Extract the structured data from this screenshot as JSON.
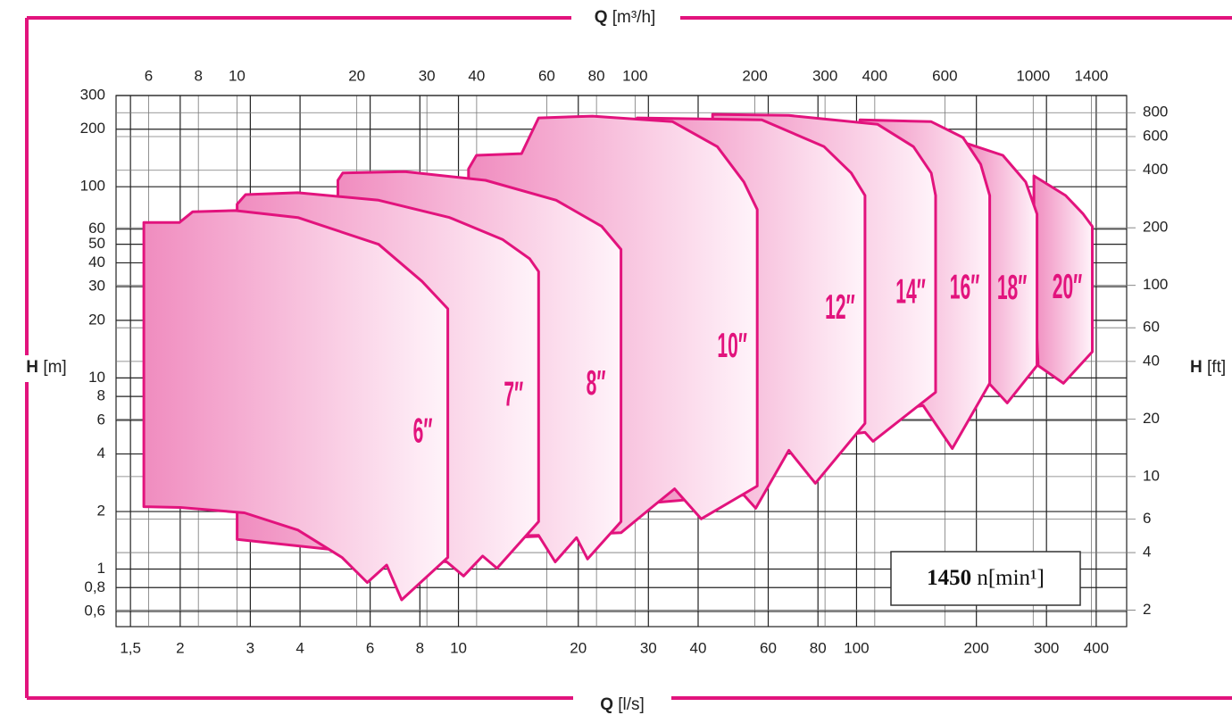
{
  "chart_data": {
    "type": "area",
    "xlabel": {
      "symbol": "Q",
      "unit": "[l/s]"
    },
    "x2label": {
      "symbol": "Q",
      "unit": "[m³/h]"
    },
    "ylabel": {
      "symbol": "H",
      "unit": "[m]"
    },
    "y2label": {
      "symbol": "H",
      "unit": "[ft]"
    },
    "log_x": true,
    "log_y": true,
    "grid": true,
    "color": "#e2137d",
    "fill": "#f08cbf",
    "xlim": [
      1.38,
      477
    ],
    "xticks": [
      {
        "value": 1.5,
        "label": "1,5"
      },
      2,
      3,
      4,
      6,
      8,
      10,
      20,
      30,
      40,
      60,
      80,
      100,
      200,
      300,
      400
    ],
    "x2lim": [
      4.97,
      1717
    ],
    "x2ticks": [
      6,
      8,
      10,
      20,
      30,
      40,
      60,
      80,
      100,
      200,
      300,
      400,
      600,
      1000,
      1400
    ],
    "ylim": [
      0.5,
      300
    ],
    "yticks": [
      300,
      200,
      100,
      60,
      50,
      40,
      20,
      30,
      10,
      8,
      6,
      4,
      2,
      1,
      {
        "value": 0.8,
        "label": "0,8"
      },
      {
        "value": 0.6,
        "label": "0,6"
      }
    ],
    "y2lim": [
      1.64,
      984
    ],
    "y2ticks": [
      800,
      600,
      400,
      200,
      100,
      60,
      40,
      20,
      10,
      6,
      4,
      2
    ],
    "series": [
      {
        "name": "6″",
        "x": [
          1.62,
          1.99,
          2.15,
          2.75,
          3.95,
          6.3,
          8.1,
          9.4,
          9.4,
          7.2,
          6.6,
          5.9,
          5.1,
          3.95,
          2.9,
          2.0,
          1.62
        ],
        "values": [
          65,
          65,
          74,
          75,
          69,
          50,
          32,
          23,
          1.15,
          0.69,
          1.05,
          0.85,
          1.15,
          1.6,
          1.97,
          2.1,
          2.12
        ]
      },
      {
        "name": "7″",
        "x": [
          2.78,
          2.92,
          3.95,
          6.3,
          9.5,
          12.9,
          15.1,
          15.9,
          15.9,
          12.5,
          11.5,
          10.3,
          9.35,
          2.78
        ],
        "values": [
          81,
          91,
          93,
          85,
          69,
          53,
          42,
          36,
          1.77,
          1.01,
          1.17,
          0.92,
          1.09,
          1.43
        ]
      },
      {
        "name": "8″",
        "x": [
          4.98,
          5.12,
          7.33,
          11.7,
          17.6,
          22.9,
          25.6,
          25.6,
          21.1,
          19.8,
          17.5,
          15.9,
          4.98
        ],
        "values": [
          108,
          118,
          120,
          108,
          85,
          62,
          47,
          1.77,
          1.13,
          1.46,
          1.09,
          1.5,
          1.43
        ]
      },
      {
        "name": "10″",
        "x": [
          10.6,
          11.1,
          14.4,
          15.9,
          21.7,
          34.5,
          44.7,
          52.1,
          56.3,
          56.3,
          40.7,
          34.9,
          30.4,
          25.6,
          10.6
        ],
        "values": [
          124,
          146,
          149,
          229,
          234,
          219,
          162,
          106,
          76,
          2.72,
          1.83,
          2.63,
          2.08,
          1.55,
          1.43
        ]
      },
      {
        "name": "12″",
        "x": [
          28.1,
          57.8,
          82.9,
          97,
          105,
          105,
          78.8,
          67.6,
          55.8,
          52.1,
          28.1
        ],
        "values": [
          229,
          224,
          162,
          118,
          90,
          5.78,
          2.81,
          4.18,
          2.08,
          2.44,
          2.19
        ]
      },
      {
        "name": "14″",
        "x": [
          43.5,
          67.6,
          113,
          139,
          154,
          158,
          158,
          110,
          105,
          43.5
        ],
        "values": [
          239,
          236,
          212,
          162,
          118,
          90,
          8.42,
          4.66,
          5.19,
          4.18
        ]
      },
      {
        "name": "16″",
        "x": [
          102,
          154,
          185,
          205,
          216,
          216,
          174,
          147,
          102
        ],
        "values": [
          224,
          219,
          181,
          131,
          90,
          9.37,
          4.27,
          7.16,
          6.43
        ]
      },
      {
        "name": "18″",
        "x": [
          190,
          233,
          266,
          284,
          284,
          239,
          210,
          190
        ],
        "values": [
          168,
          146,
          106,
          72,
          11.6,
          7.4,
          9.89,
          8.89
        ]
      },
      {
        "name": "20″",
        "x": [
          279,
          335,
          371,
          391,
          391,
          331,
          286,
          279
        ],
        "values": [
          114,
          90,
          72,
          62,
          13.7,
          9.37,
          11.6,
          36
        ]
      }
    ],
    "annotation": {
      "speed": 1450,
      "unit": "n[min¹]"
    }
  }
}
